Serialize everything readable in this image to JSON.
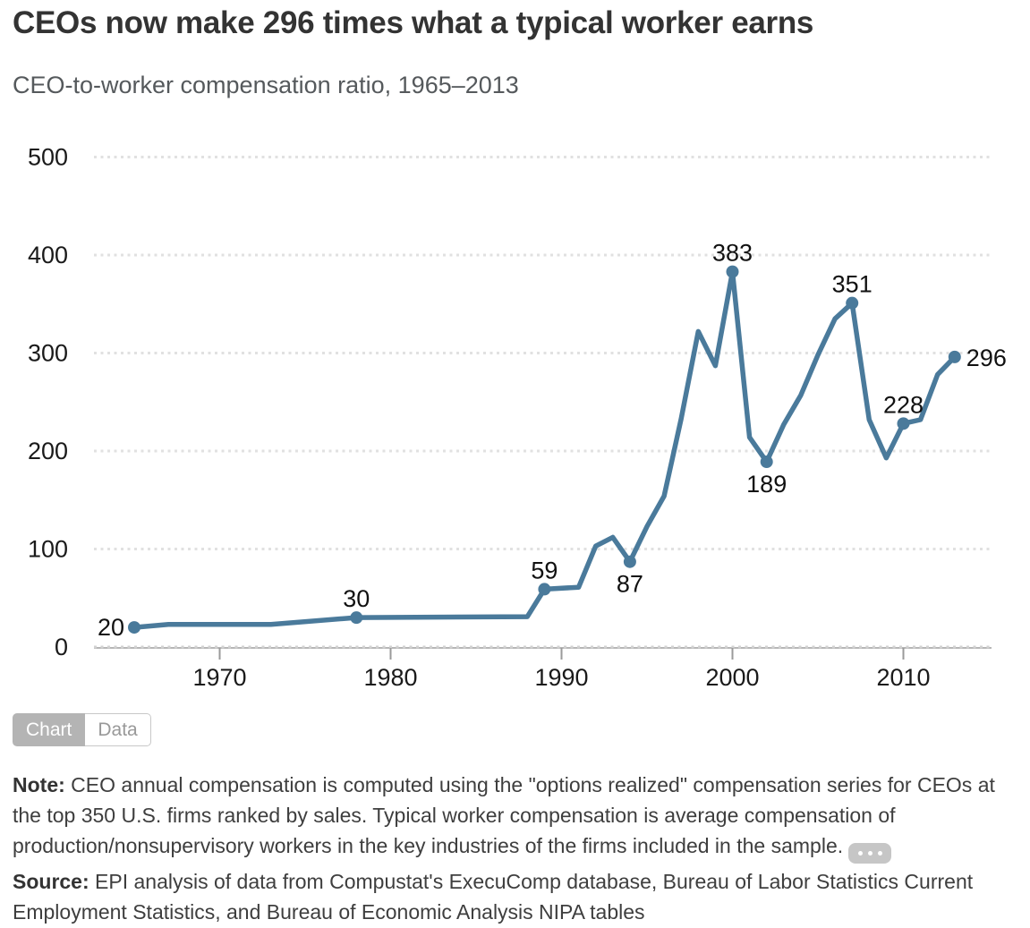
{
  "chart_data": {
    "type": "line",
    "title": "CEOs now make 296 times what a typical worker earns",
    "subtitle": "CEO-to-worker compensation ratio, 1965–2013",
    "series_name": "CEO-to-worker compensation ratio",
    "x": [
      1965,
      1967,
      1973,
      1978,
      1988,
      1989,
      1991,
      1992,
      1993,
      1994,
      1995,
      1996,
      1997,
      1998,
      1999,
      2000,
      2001,
      2002,
      2003,
      2004,
      2005,
      2006,
      2007,
      2008,
      2009,
      2010,
      2011,
      2012,
      2013
    ],
    "values": [
      20,
      23,
      23,
      30,
      31,
      59,
      61,
      103,
      112,
      87,
      123,
      154,
      233,
      322,
      287,
      383,
      214,
      189,
      227,
      257,
      298,
      335,
      351,
      232,
      193,
      228,
      232,
      278,
      296
    ],
    "labeled_points": [
      {
        "year": 1965,
        "value": 20,
        "label": "20",
        "position": "left"
      },
      {
        "year": 1978,
        "value": 30,
        "label": "30",
        "position": "above"
      },
      {
        "year": 1989,
        "value": 59,
        "label": "59",
        "position": "above"
      },
      {
        "year": 1994,
        "value": 87,
        "label": "87",
        "position": "below"
      },
      {
        "year": 2000,
        "value": 383,
        "label": "383",
        "position": "above"
      },
      {
        "year": 2002,
        "value": 189,
        "label": "189",
        "position": "below"
      },
      {
        "year": 2007,
        "value": 351,
        "label": "351",
        "position": "above"
      },
      {
        "year": 2010,
        "value": 228,
        "label": "228",
        "position": "above"
      },
      {
        "year": 2013,
        "value": 296,
        "label": "296",
        "position": "right"
      }
    ],
    "xlabel": "",
    "ylabel": "",
    "ylim": [
      0,
      500
    ],
    "yticks": [
      0,
      100,
      200,
      300,
      400,
      500
    ],
    "xticks": [
      1970,
      1980,
      1990,
      2000,
      2010
    ],
    "grid": "horizontal dotted",
    "legend": "none",
    "line_color": "#4a7a9b",
    "axis_label_color": "#1a1a1a",
    "data_label_color": "#111111"
  },
  "toggle": {
    "chart_label": "Chart",
    "data_label": "Data",
    "active_tab": "Chart"
  },
  "note": {
    "label": "Note:",
    "text": "CEO annual compensation is computed using the \"options realized\" compensation series for CEOs at the top 350 U.S. firms ranked by sales. Typical worker compensation is average compensation of production/nonsupervisory workers in the key industries of the firms included in the sample."
  },
  "source": {
    "label": "Source:",
    "text": "EPI analysis of data from Compustat's ExecuComp database, Bureau of Labor Statistics Current Employment Statistics, and Bureau of Economic Analysis NIPA tables"
  }
}
